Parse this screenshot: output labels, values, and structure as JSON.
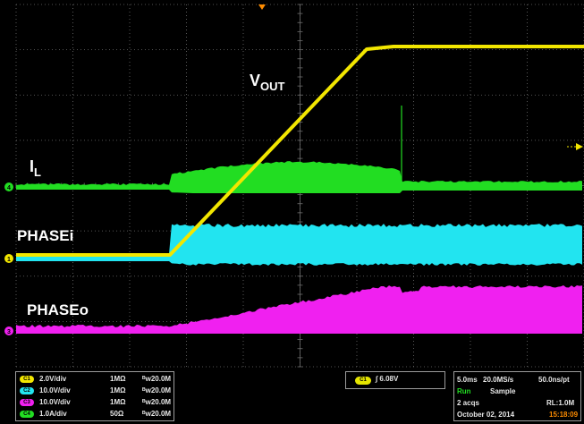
{
  "trace_labels": {
    "vout_main": "V",
    "vout_sub": "OUT",
    "il_main": "I",
    "il_sub": "L",
    "phasei": "PHASEi",
    "phaseo": "PHASEo"
  },
  "colors": {
    "ch1": "#f2e600",
    "ch2": "#22e4f0",
    "ch3": "#f020f0",
    "ch4": "#22dd22",
    "trigger_marker": "#ff8c00",
    "grid": "#6e6e6e"
  },
  "channels": [
    {
      "badge": "C1",
      "scale": "2.0V/div",
      "impedance": "1MΩ",
      "bandwidth": "ᴮw20.0M",
      "color": "#f2e600"
    },
    {
      "badge": "C2",
      "scale": "10.0V/div",
      "impedance": "1MΩ",
      "bandwidth": "ᴮw20.0M",
      "color": "#22e4f0"
    },
    {
      "badge": "C3",
      "scale": "10.0V/div",
      "impedance": "1MΩ",
      "bandwidth": "ᴮw20.0M",
      "color": "#f020f0"
    },
    {
      "badge": "C4",
      "scale": "1.0A/div",
      "impedance": "50Ω",
      "bandwidth": "ᴮw20.0M",
      "color": "#22dd22"
    }
  ],
  "trigger": {
    "badge": "C1",
    "level": "6.08V"
  },
  "acquisition": {
    "timebase": "5.0ms",
    "sample_rate": "20.0MS/s",
    "resolution": "50.0ns/pt",
    "run_state": "Run",
    "mode": "Sample",
    "acqs": "2 acqs",
    "record_length": "RL:1.0M",
    "date": "October 02, 2014",
    "time": "15:18:09"
  }
}
